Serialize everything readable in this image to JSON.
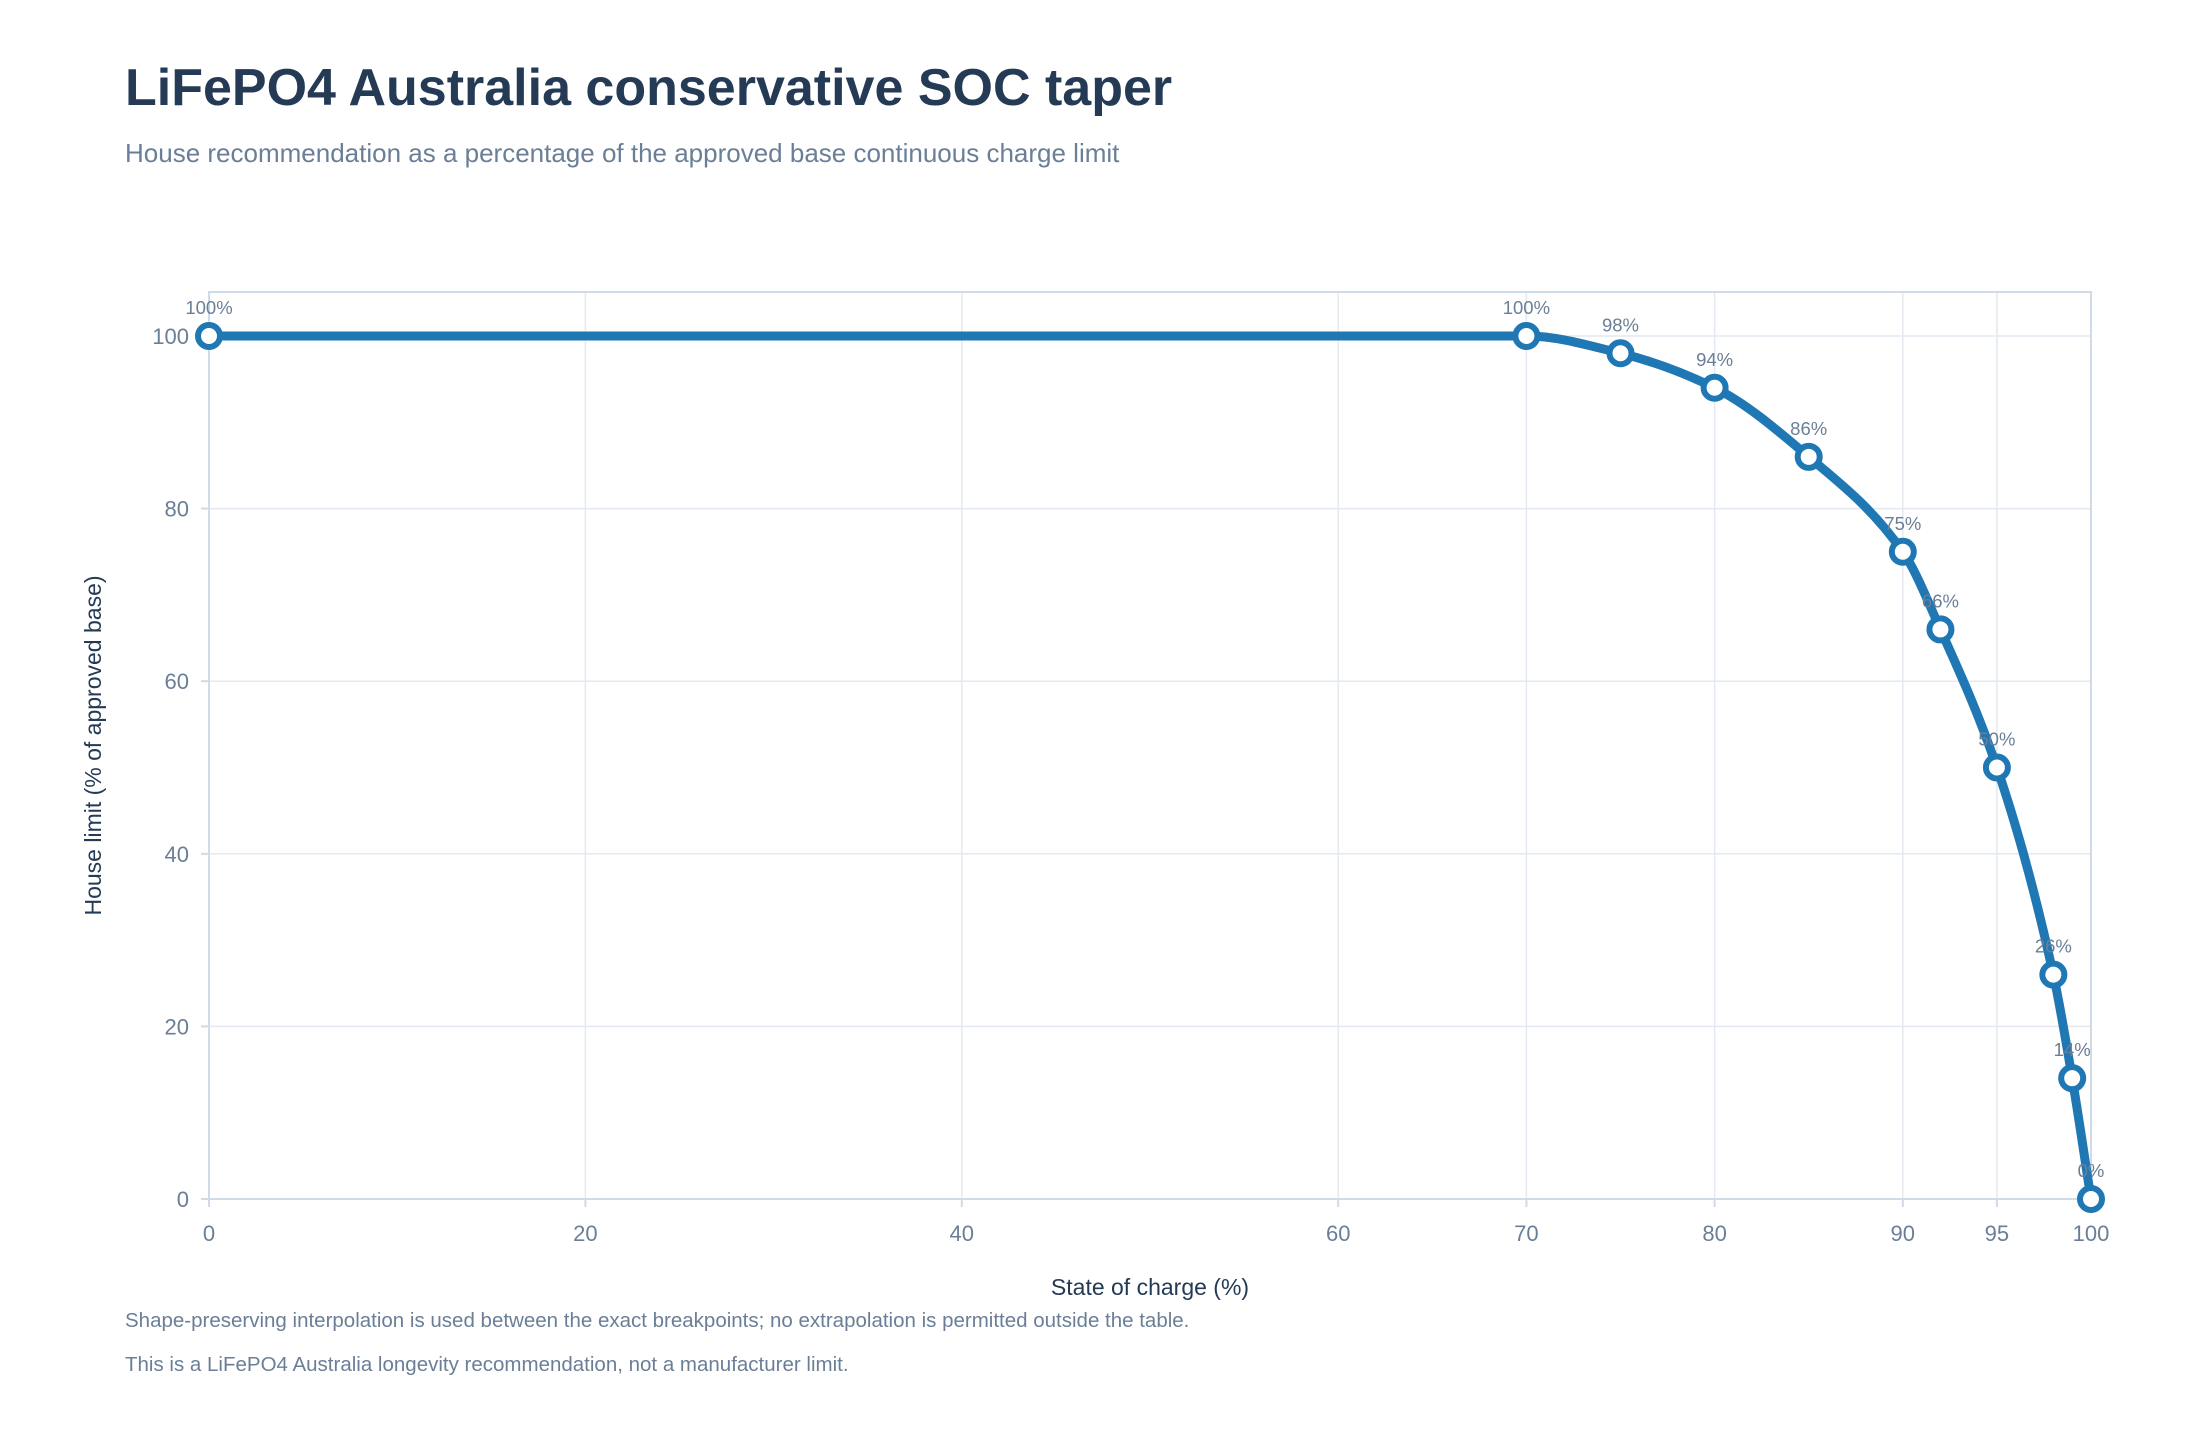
{
  "header": {
    "title": "LiFePO4 Australia conservative SOC taper",
    "subtitle": "House recommendation as a percentage of the approved base continuous charge limit"
  },
  "footnotes": [
    "Shape-preserving interpolation is used between the exact breakpoints; no extrapolation is permitted outside the table.",
    "This is a LiFePO4 Australia longevity recommendation, not a manufacturer limit."
  ],
  "chart_data": {
    "type": "line",
    "title": "LiFePO4 Australia conservative SOC taper",
    "subtitle": "House recommendation as a percentage of the approved base continuous charge limit",
    "xlabel": "State of charge (%)",
    "ylabel": "House limit (% of approved base)",
    "xlim": [
      0,
      100
    ],
    "ylim": [
      0,
      105
    ],
    "x_ticks": [
      0,
      20,
      40,
      60,
      70,
      80,
      90,
      95,
      100
    ],
    "y_ticks": [
      0,
      20,
      40,
      60,
      80,
      100
    ],
    "grid": true,
    "legend": "none",
    "line_color": "#1f77b4",
    "series": [
      {
        "x": [
          0,
          70,
          75,
          80,
          85,
          90,
          92,
          95,
          98,
          99,
          100
        ],
        "y": [
          100,
          100,
          98,
          94,
          86,
          75,
          66,
          50,
          26,
          14,
          0
        ],
        "labels": [
          "100%",
          "100%",
          "98%",
          "94%",
          "86%",
          "75%",
          "66%",
          "50%",
          "26%",
          "14%",
          "0%"
        ]
      }
    ]
  }
}
